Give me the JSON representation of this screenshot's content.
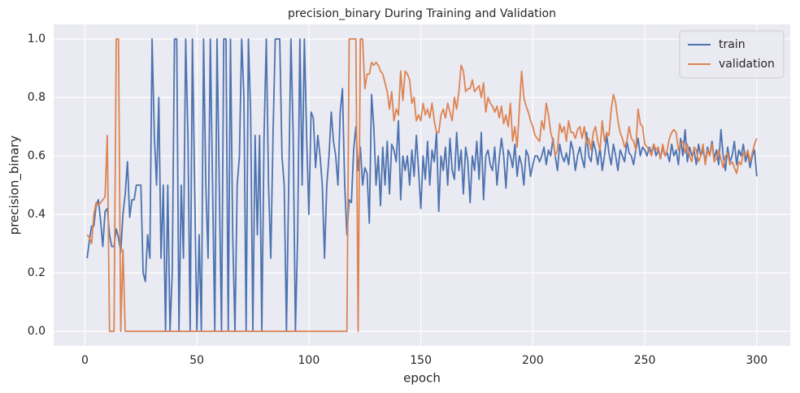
{
  "chart_data": {
    "type": "line",
    "title": "precision_binary During Training and Validation",
    "xlabel": "epoch",
    "ylabel": "precision_binary",
    "x": [
      1,
      2,
      3,
      4,
      5,
      6,
      7,
      8,
      9,
      10,
      11,
      12,
      13,
      14,
      15,
      16,
      17,
      18,
      19,
      20,
      21,
      22,
      23,
      24,
      25,
      26,
      27,
      28,
      29,
      30,
      31,
      32,
      33,
      34,
      35,
      36,
      37,
      38,
      39,
      40,
      41,
      42,
      43,
      44,
      45,
      46,
      47,
      48,
      49,
      50,
      51,
      52,
      53,
      54,
      55,
      56,
      57,
      58,
      59,
      60,
      61,
      62,
      63,
      64,
      65,
      66,
      67,
      68,
      69,
      70,
      71,
      72,
      73,
      74,
      75,
      76,
      77,
      78,
      79,
      80,
      81,
      82,
      83,
      84,
      85,
      86,
      87,
      88,
      89,
      90,
      91,
      92,
      93,
      94,
      95,
      96,
      97,
      98,
      99,
      100,
      101,
      102,
      103,
      104,
      105,
      106,
      107,
      108,
      109,
      110,
      111,
      112,
      113,
      114,
      115,
      116,
      117,
      118,
      119,
      120,
      121,
      122,
      123,
      124,
      125,
      126,
      127,
      128,
      129,
      130,
      131,
      132,
      133,
      134,
      135,
      136,
      137,
      138,
      139,
      140,
      141,
      142,
      143,
      144,
      145,
      146,
      147,
      148,
      149,
      150,
      151,
      152,
      153,
      154,
      155,
      156,
      157,
      158,
      159,
      160,
      161,
      162,
      163,
      164,
      165,
      166,
      167,
      168,
      169,
      170,
      171,
      172,
      173,
      174,
      175,
      176,
      177,
      178,
      179,
      180,
      181,
      182,
      183,
      184,
      185,
      186,
      187,
      188,
      189,
      190,
      191,
      192,
      193,
      194,
      195,
      196,
      197,
      198,
      199,
      200,
      201,
      202,
      203,
      204,
      205,
      206,
      207,
      208,
      209,
      210,
      211,
      212,
      213,
      214,
      215,
      216,
      217,
      218,
      219,
      220,
      221,
      222,
      223,
      224,
      225,
      226,
      227,
      228,
      229,
      230,
      231,
      232,
      233,
      234,
      235,
      236,
      237,
      238,
      239,
      240,
      241,
      242,
      243,
      244,
      245,
      246,
      247,
      248,
      249,
      250,
      251,
      252,
      253,
      254,
      255,
      256,
      257,
      258,
      259,
      260,
      261,
      262,
      263,
      264,
      265,
      266,
      267,
      268,
      269,
      270,
      271,
      272,
      273,
      274,
      275,
      276,
      277,
      278,
      279,
      280,
      281,
      282,
      283,
      284,
      285,
      286,
      287,
      288,
      289,
      290,
      291,
      292,
      293,
      294,
      295,
      296,
      297,
      298,
      299,
      300
    ],
    "series": [
      {
        "name": "train",
        "color": "#4c72b0",
        "values": [
          0.25,
          0.31,
          0.36,
          0.36,
          0.43,
          0.45,
          0.38,
          0.29,
          0.41,
          0.42,
          0.33,
          0.29,
          0.29,
          0.35,
          0.32,
          0.27,
          0.4,
          0.47,
          0.58,
          0.39,
          0.45,
          0.45,
          0.5,
          0.5,
          0.5,
          0.2,
          0.17,
          0.33,
          0.25,
          1,
          0.67,
          0.5,
          0.8,
          0.25,
          0.5,
          0,
          0.5,
          0,
          0.2,
          1,
          1,
          0,
          0.5,
          0.25,
          1,
          0.67,
          0,
          1,
          0.5,
          0,
          0.33,
          0,
          1,
          0.5,
          0.25,
          1,
          0.5,
          0,
          1,
          0.5,
          0,
          1,
          1,
          0,
          1,
          0.33,
          0,
          0.5,
          0.6,
          1,
          0.8,
          0,
          1,
          0.75,
          0,
          0.67,
          0.33,
          0.67,
          0,
          0.67,
          1,
          0.5,
          0.25,
          0.67,
          1,
          1,
          1,
          0.6,
          0.5,
          0,
          0.5,
          1,
          0.67,
          0,
          0.33,
          1,
          0.5,
          1,
          0.67,
          0.4,
          0.75,
          0.73,
          0.56,
          0.67,
          0.6,
          0.5,
          0.25,
          0.5,
          0.6,
          0.75,
          0.65,
          0.6,
          0.5,
          0.75,
          0.83,
          0.5,
          0.33,
          0.45,
          0.44,
          0.62,
          0.7,
          0.55,
          0.63,
          0.5,
          0.56,
          0.54,
          0.37,
          0.81,
          0.7,
          0.5,
          0.6,
          0.43,
          0.63,
          0.5,
          0.65,
          0.47,
          0.64,
          0.62,
          0.58,
          0.72,
          0.45,
          0.6,
          0.55,
          0.6,
          0.5,
          0.62,
          0.53,
          0.67,
          0.55,
          0.42,
          0.6,
          0.52,
          0.65,
          0.5,
          0.62,
          0.58,
          0.68,
          0.41,
          0.6,
          0.55,
          0.63,
          0.5,
          0.66,
          0.55,
          0.52,
          0.68,
          0.55,
          0.62,
          0.47,
          0.63,
          0.58,
          0.44,
          0.6,
          0.55,
          0.65,
          0.52,
          0.68,
          0.45,
          0.6,
          0.62,
          0.57,
          0.55,
          0.63,
          0.5,
          0.59,
          0.66,
          0.6,
          0.49,
          0.62,
          0.6,
          0.56,
          0.64,
          0.53,
          0.6,
          0.57,
          0.5,
          0.62,
          0.6,
          0.53,
          0.57,
          0.6,
          0.6,
          0.58,
          0.6,
          0.63,
          0.57,
          0.62,
          0.6,
          0.66,
          0.6,
          0.55,
          0.64,
          0.6,
          0.58,
          0.61,
          0.57,
          0.65,
          0.62,
          0.55,
          0.6,
          0.63,
          0.59,
          0.56,
          0.68,
          0.6,
          0.58,
          0.65,
          0.62,
          0.57,
          0.63,
          0.55,
          0.6,
          0.67,
          0.61,
          0.57,
          0.64,
          0.6,
          0.55,
          0.62,
          0.6,
          0.58,
          0.65,
          0.61,
          0.6,
          0.57,
          0.62,
          0.66,
          0.6,
          0.63,
          0.62,
          0.6,
          0.63,
          0.61,
          0.64,
          0.6,
          0.62,
          0.59,
          0.63,
          0.6,
          0.61,
          0.58,
          0.64,
          0.6,
          0.62,
          0.57,
          0.66,
          0.6,
          0.69,
          0.58,
          0.63,
          0.6,
          0.62,
          0.57,
          0.64,
          0.6,
          0.62,
          0.58,
          0.63,
          0.6,
          0.65,
          0.59,
          0.62,
          0.57,
          0.69,
          0.6,
          0.55,
          0.63,
          0.58,
          0.6,
          0.65,
          0.57,
          0.62,
          0.6,
          0.64,
          0.58,
          0.61,
          0.56,
          0.6,
          0.62,
          0.53
        ]
      },
      {
        "name": "validation",
        "color": "#dd8452",
        "values": [
          0.33,
          0.32,
          0.3,
          0.4,
          0.44,
          0.43,
          0.44,
          0.45,
          0.46,
          0.67,
          0,
          0,
          0,
          1,
          1,
          0,
          0.28,
          0,
          0,
          0,
          0,
          0,
          0,
          0,
          0,
          0,
          0,
          0,
          0,
          0,
          0,
          0,
          0,
          0,
          0,
          0,
          0,
          0,
          0,
          0,
          0,
          0,
          0,
          0,
          0,
          0,
          0,
          0,
          0,
          0,
          0,
          0,
          0,
          0,
          0,
          0,
          0,
          0,
          0,
          0,
          0,
          0,
          0,
          0,
          0,
          0,
          0,
          0,
          0,
          0,
          0,
          0,
          0,
          0,
          0,
          0,
          0,
          0,
          0,
          0,
          0,
          0,
          0,
          0,
          0,
          0,
          0,
          0,
          0,
          0,
          0,
          0,
          0,
          0,
          0,
          0,
          0,
          0,
          0,
          0,
          0,
          0,
          0,
          0,
          0,
          0,
          0,
          0,
          0,
          0,
          0,
          0,
          0,
          0,
          0,
          0,
          0,
          1,
          1,
          1,
          1,
          0,
          1,
          1,
          0.83,
          0.88,
          0.88,
          0.92,
          0.91,
          0.92,
          0.91,
          0.89,
          0.88,
          0.85,
          0.82,
          0.76,
          0.82,
          0.72,
          0.76,
          0.74,
          0.89,
          0.79,
          0.89,
          0.88,
          0.86,
          0.78,
          0.8,
          0.72,
          0.74,
          0.72,
          0.78,
          0.74,
          0.76,
          0.73,
          0.78,
          0.72,
          0.68,
          0.68,
          0.74,
          0.76,
          0.73,
          0.78,
          0.75,
          0.72,
          0.8,
          0.76,
          0.82,
          0.91,
          0.89,
          0.82,
          0.83,
          0.83,
          0.86,
          0.82,
          0.83,
          0.84,
          0.8,
          0.85,
          0.75,
          0.8,
          0.78,
          0.77,
          0.75,
          0.77,
          0.73,
          0.77,
          0.71,
          0.74,
          0.7,
          0.78,
          0.65,
          0.7,
          0.63,
          0.76,
          0.89,
          0.8,
          0.77,
          0.75,
          0.72,
          0.7,
          0.67,
          0.66,
          0.65,
          0.72,
          0.69,
          0.78,
          0.74,
          0.68,
          0.65,
          0.6,
          0.62,
          0.71,
          0.68,
          0.7,
          0.65,
          0.72,
          0.68,
          0.68,
          0.66,
          0.69,
          0.7,
          0.66,
          0.7,
          0.64,
          0.66,
          0.62,
          0.68,
          0.7,
          0.65,
          0.62,
          0.72,
          0.65,
          0.68,
          0.67,
          0.76,
          0.81,
          0.78,
          0.72,
          0.68,
          0.66,
          0.63,
          0.65,
          0.7,
          0.66,
          0.65,
          0.62,
          0.76,
          0.71,
          0.7,
          0.64,
          0.63,
          0.62,
          0.6,
          0.64,
          0.62,
          0.63,
          0.59,
          0.64,
          0.6,
          0.62,
          0.66,
          0.68,
          0.69,
          0.68,
          0.62,
          0.64,
          0.65,
          0.61,
          0.64,
          0.6,
          0.58,
          0.63,
          0.62,
          0.58,
          0.6,
          0.64,
          0.57,
          0.62,
          0.6,
          0.64,
          0.58,
          0.59,
          0.62,
          0.59,
          0.56,
          0.6,
          0.61,
          0.57,
          0.58,
          0.56,
          0.54,
          0.58,
          0.57,
          0.61,
          0.6,
          0.62,
          0.58,
          0.61,
          0.64,
          0.66
        ]
      }
    ],
    "xlim": [
      -13.95,
      314.95
    ],
    "xticks": [
      0,
      50,
      100,
      150,
      200,
      250,
      300
    ],
    "ylim": [
      -0.05,
      1.05
    ],
    "yticks": [
      {
        "value": 0,
        "label": "0.0"
      },
      {
        "value": 0.2,
        "label": "0.2"
      },
      {
        "value": 0.4,
        "label": "0.4"
      },
      {
        "value": 0.6,
        "label": "0.6"
      },
      {
        "value": 0.8,
        "label": "0.8"
      },
      {
        "value": 1,
        "label": "1.0"
      }
    ],
    "grid": true,
    "legend": "upper right"
  }
}
